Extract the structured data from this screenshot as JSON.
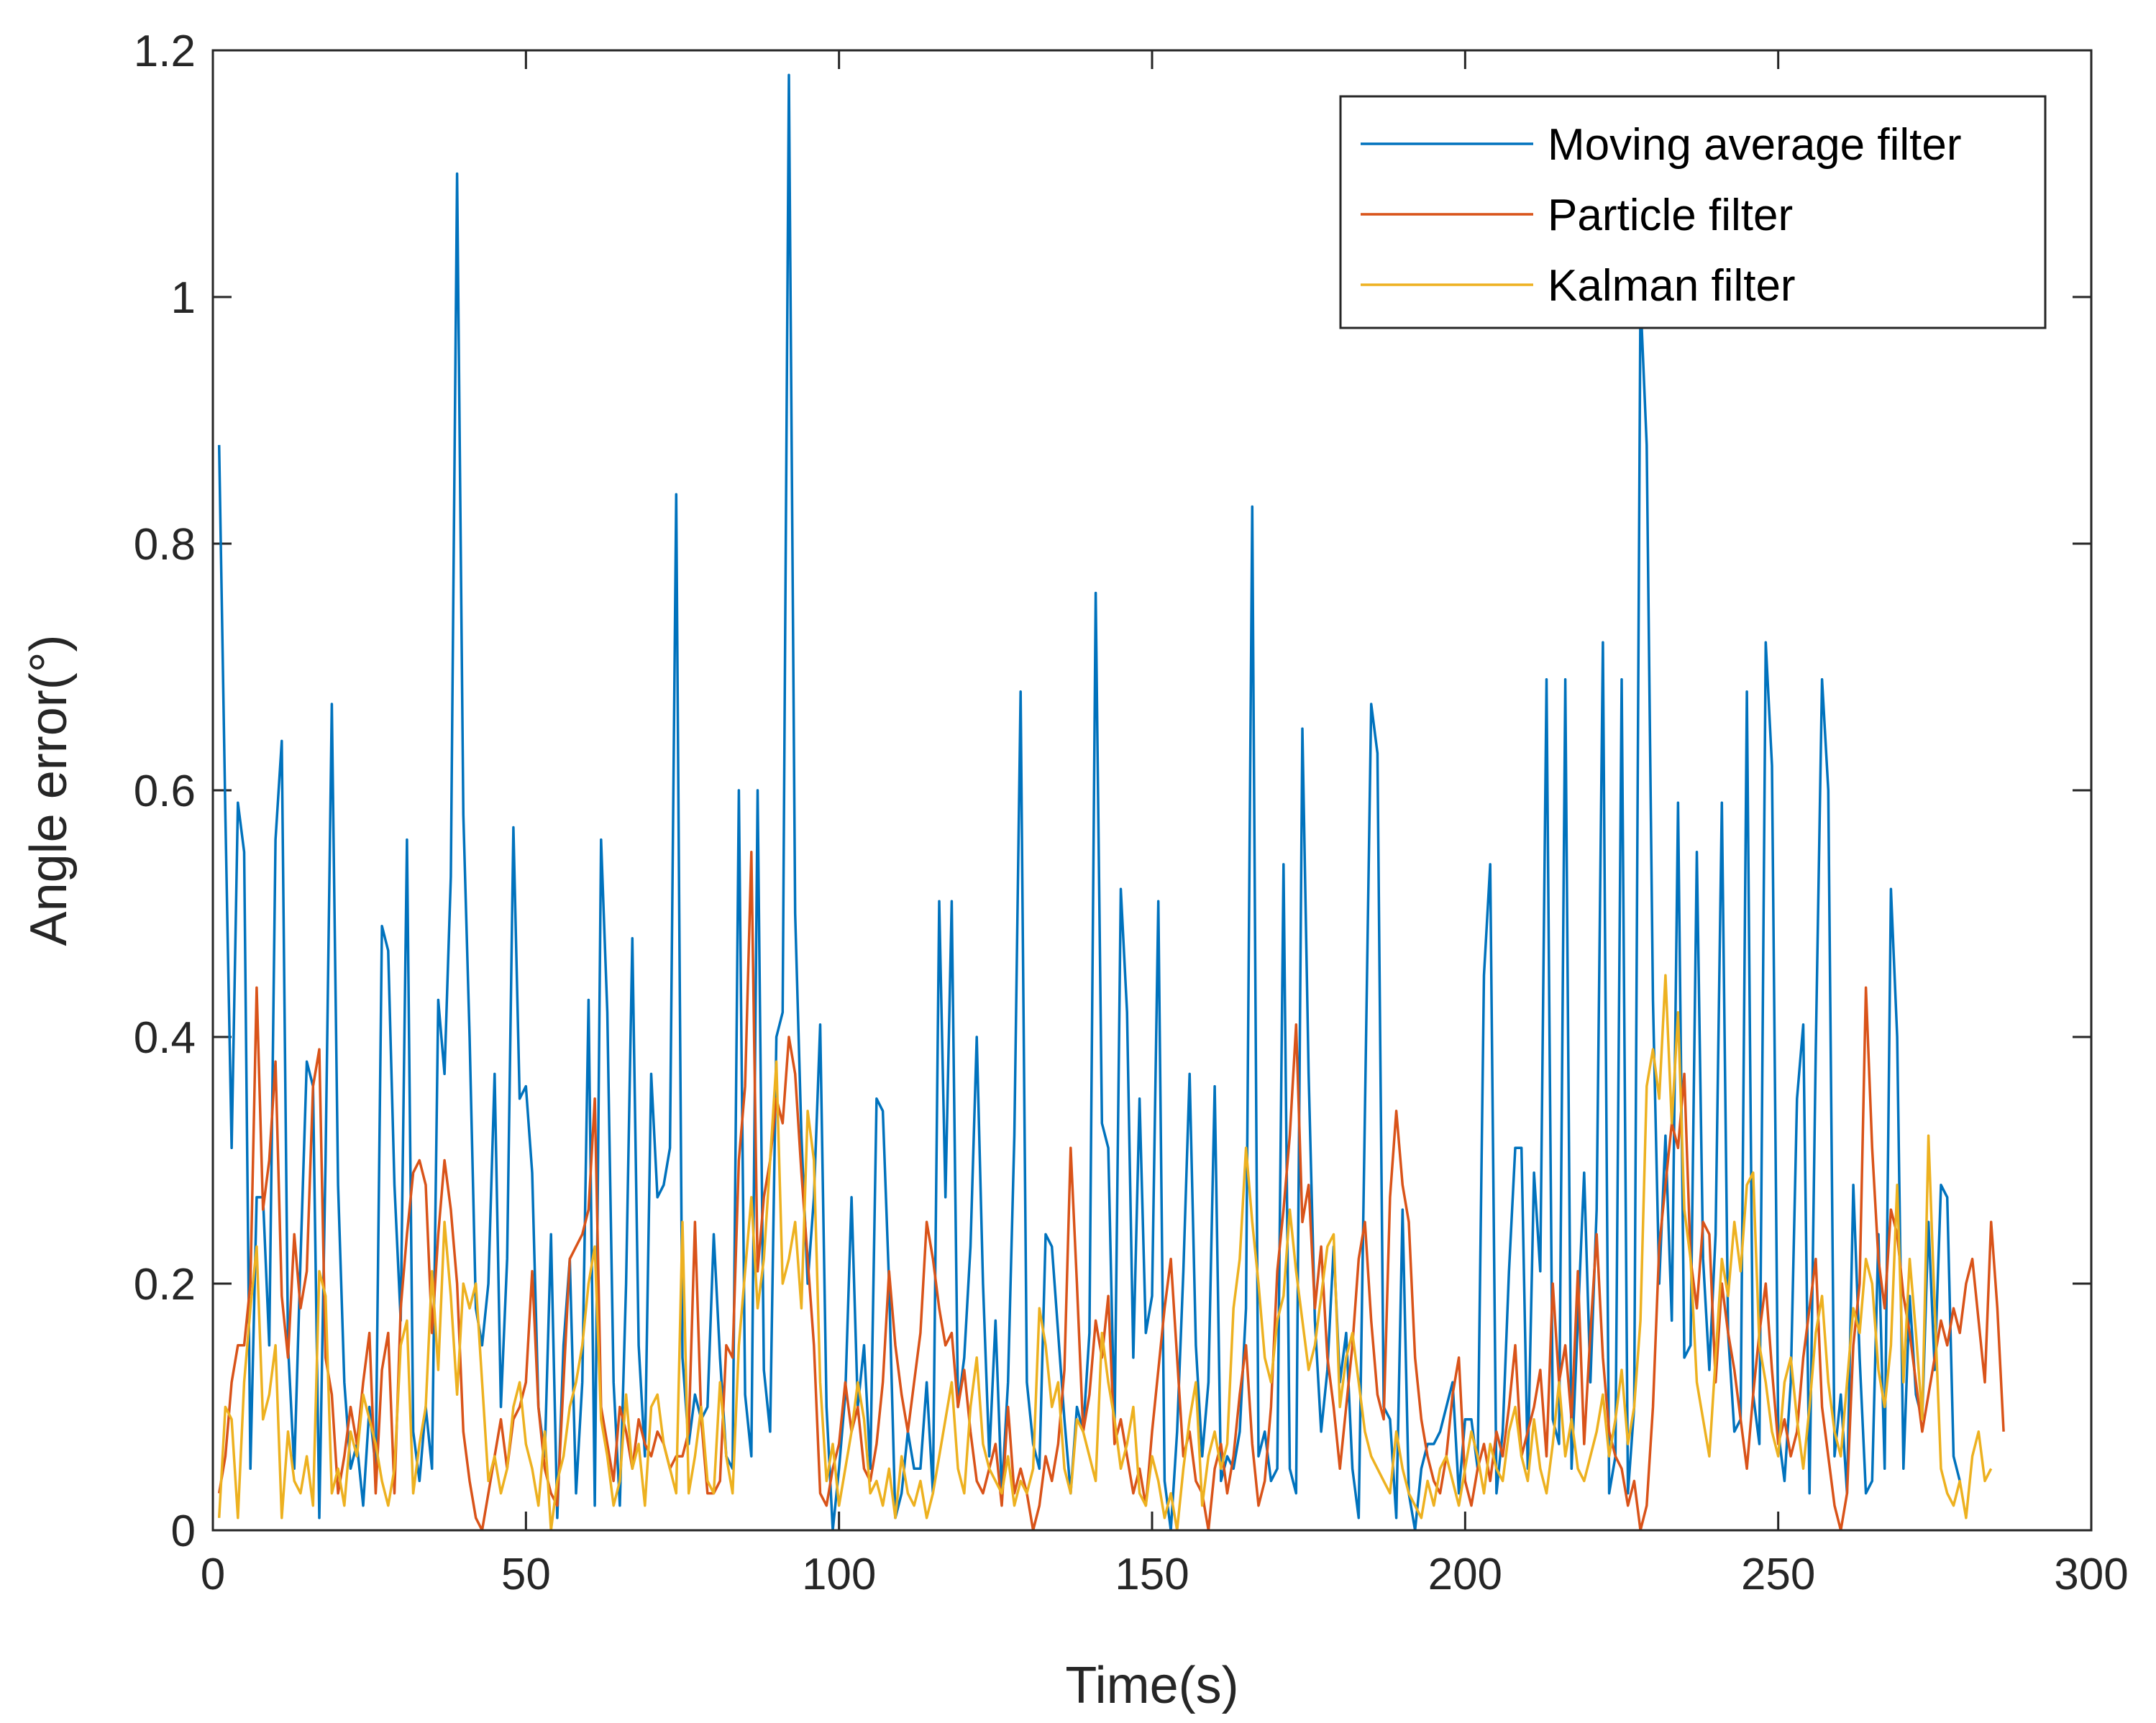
{
  "chart_data": {
    "type": "line",
    "title": "",
    "xlabel": "Time(s)",
    "ylabel": "Angle error(°)",
    "xlim": [
      0,
      300
    ],
    "ylim": [
      0,
      1.2
    ],
    "xticks": [
      0,
      50,
      100,
      150,
      200,
      250,
      300
    ],
    "yticks": [
      0,
      0.2,
      0.4,
      0.6,
      0.8,
      1,
      1.2
    ],
    "xtick_labels": [
      "0",
      "50",
      "100",
      "150",
      "200",
      "250",
      "300"
    ],
    "ytick_labels": [
      "0",
      "0.2",
      "0.4",
      "0.6",
      "0.8",
      "1",
      "1.2"
    ],
    "legend_position": "top-right",
    "x": {
      "start": 1,
      "end": 300,
      "step": 1
    },
    "series": [
      {
        "name": "Moving average filter",
        "color": "#0072BD",
        "values": [
          0.88,
          0.58,
          0.31,
          0.59,
          0.55,
          0.05,
          0.27,
          0.27,
          0.15,
          0.56,
          0.64,
          0.15,
          0.05,
          0.22,
          0.38,
          0.36,
          0.01,
          0.3,
          0.67,
          0.28,
          0.12,
          0.05,
          0.07,
          0.02,
          0.1,
          0.05,
          0.49,
          0.47,
          0.28,
          0.17,
          0.56,
          0.08,
          0.04,
          0.1,
          0.05,
          0.43,
          0.37,
          0.53,
          1.1,
          0.58,
          0.4,
          0.18,
          0.15,
          0.2,
          0.37,
          0.1,
          0.22,
          0.57,
          0.35,
          0.36,
          0.29,
          0.1,
          0.06,
          0.24,
          0.01,
          0.15,
          0.22,
          0.03,
          0.12,
          0.43,
          0.02,
          0.56,
          0.42,
          0.12,
          0.02,
          0.2,
          0.48,
          0.15,
          0.06,
          0.37,
          0.27,
          0.28,
          0.31,
          0.84,
          0.14,
          0.07,
          0.11,
          0.09,
          0.1,
          0.24,
          0.14,
          0.06,
          0.05,
          0.6,
          0.11,
          0.06,
          0.6,
          0.13,
          0.08,
          0.4,
          0.42,
          1.18,
          0.5,
          0.32,
          0.2,
          0.27,
          0.41,
          0.1,
          0.0,
          0.05,
          0.11,
          0.27,
          0.1,
          0.15,
          0.05,
          0.35,
          0.34,
          0.2,
          0.01,
          0.03,
          0.08,
          0.05,
          0.05,
          0.12,
          0.03,
          0.51,
          0.27,
          0.51,
          0.1,
          0.14,
          0.23,
          0.4,
          0.2,
          0.06,
          0.17,
          0.03,
          0.12,
          0.32,
          0.68,
          0.12,
          0.07,
          0.05,
          0.24,
          0.23,
          0.16,
          0.09,
          0.03,
          0.1,
          0.08,
          0.16,
          0.76,
          0.33,
          0.31,
          0.08,
          0.52,
          0.42,
          0.14,
          0.35,
          0.16,
          0.19,
          0.51,
          0.04,
          0.0,
          0.08,
          0.21,
          0.37,
          0.15,
          0.06,
          0.12,
          0.36,
          0.04,
          0.06,
          0.05,
          0.08,
          0.18,
          0.83,
          0.06,
          0.08,
          0.04,
          0.05,
          0.54,
          0.05,
          0.03,
          0.65,
          0.37,
          0.17,
          0.08,
          0.13,
          0.23,
          0.12,
          0.16,
          0.05,
          0.01,
          0.34,
          0.67,
          0.63,
          0.1,
          0.09,
          0.01,
          0.26,
          0.03,
          0.0,
          0.05,
          0.07,
          0.07,
          0.08,
          0.1,
          0.12,
          0.03,
          0.09,
          0.09,
          0.05,
          0.45,
          0.54,
          0.03,
          0.08,
          0.21,
          0.31,
          0.31,
          0.05,
          0.29,
          0.21,
          0.69,
          0.09,
          0.07,
          0.69,
          0.05,
          0.17,
          0.29,
          0.12,
          0.26,
          0.72,
          0.03,
          0.06,
          0.69,
          0.03,
          0.1,
          1.0,
          0.88,
          0.43,
          0.2,
          0.32,
          0.17,
          0.59,
          0.14,
          0.15,
          0.55,
          0.22,
          0.13,
          0.24,
          0.59,
          0.16,
          0.08,
          0.09,
          0.68,
          0.11,
          0.07,
          0.72,
          0.62,
          0.08,
          0.04,
          0.12,
          0.35,
          0.41,
          0.03,
          0.39,
          0.69,
          0.6,
          0.06,
          0.11,
          0.03,
          0.28,
          0.14,
          0.03,
          0.04,
          0.24,
          0.05,
          0.52,
          0.4,
          0.05,
          0.19,
          0.11,
          0.09,
          0.25,
          0.13,
          0.28,
          0.27,
          0.06,
          0.04
        ]
      },
      {
        "name": "Particle filter",
        "color": "#D95319",
        "values": [
          0.03,
          0.06,
          0.12,
          0.15,
          0.15,
          0.2,
          0.44,
          0.26,
          0.3,
          0.38,
          0.19,
          0.14,
          0.24,
          0.18,
          0.21,
          0.36,
          0.39,
          0.14,
          0.11,
          0.03,
          0.06,
          0.1,
          0.07,
          0.12,
          0.16,
          0.03,
          0.13,
          0.16,
          0.03,
          0.18,
          0.24,
          0.29,
          0.3,
          0.28,
          0.16,
          0.24,
          0.3,
          0.26,
          0.2,
          0.08,
          0.04,
          0.01,
          0.0,
          0.03,
          0.06,
          0.09,
          0.05,
          0.09,
          0.1,
          0.12,
          0.21,
          0.1,
          0.05,
          0.03,
          0.02,
          0.12,
          0.22,
          0.23,
          0.24,
          0.26,
          0.35,
          0.1,
          0.07,
          0.04,
          0.1,
          0.08,
          0.05,
          0.09,
          0.07,
          0.06,
          0.08,
          0.07,
          0.05,
          0.06,
          0.06,
          0.08,
          0.25,
          0.09,
          0.03,
          0.03,
          0.04,
          0.15,
          0.14,
          0.3,
          0.36,
          0.55,
          0.21,
          0.27,
          0.3,
          0.35,
          0.33,
          0.4,
          0.37,
          0.29,
          0.22,
          0.15,
          0.03,
          0.02,
          0.05,
          0.07,
          0.12,
          0.08,
          0.1,
          0.05,
          0.04,
          0.07,
          0.12,
          0.21,
          0.15,
          0.11,
          0.08,
          0.12,
          0.16,
          0.25,
          0.22,
          0.18,
          0.15,
          0.16,
          0.1,
          0.13,
          0.08,
          0.04,
          0.03,
          0.05,
          0.07,
          0.02,
          0.1,
          0.03,
          0.05,
          0.03,
          0.0,
          0.02,
          0.06,
          0.04,
          0.07,
          0.13,
          0.31,
          0.2,
          0.08,
          0.11,
          0.17,
          0.14,
          0.19,
          0.07,
          0.09,
          0.06,
          0.03,
          0.05,
          0.02,
          0.08,
          0.13,
          0.18,
          0.22,
          0.14,
          0.06,
          0.08,
          0.04,
          0.03,
          0.0,
          0.05,
          0.07,
          0.03,
          0.06,
          0.11,
          0.15,
          0.07,
          0.02,
          0.04,
          0.1,
          0.21,
          0.26,
          0.32,
          0.41,
          0.25,
          0.28,
          0.18,
          0.23,
          0.14,
          0.1,
          0.05,
          0.1,
          0.15,
          0.22,
          0.25,
          0.17,
          0.11,
          0.09,
          0.27,
          0.34,
          0.28,
          0.25,
          0.14,
          0.09,
          0.06,
          0.04,
          0.03,
          0.06,
          0.11,
          0.14,
          0.04,
          0.02,
          0.05,
          0.07,
          0.04,
          0.08,
          0.06,
          0.1,
          0.15,
          0.06,
          0.08,
          0.1,
          0.13,
          0.06,
          0.2,
          0.12,
          0.15,
          0.09,
          0.21,
          0.07,
          0.16,
          0.24,
          0.14,
          0.08,
          0.06,
          0.05,
          0.02,
          0.04,
          0.0,
          0.02,
          0.1,
          0.23,
          0.28,
          0.33,
          0.31,
          0.37,
          0.22,
          0.18,
          0.25,
          0.24,
          0.12,
          0.2,
          0.16,
          0.13,
          0.09,
          0.05,
          0.11,
          0.16,
          0.2,
          0.13,
          0.07,
          0.09,
          0.06,
          0.08,
          0.14,
          0.18,
          0.22,
          0.1,
          0.06,
          0.02,
          0.0,
          0.03,
          0.15,
          0.2,
          0.44,
          0.31,
          0.22,
          0.18,
          0.26,
          0.24,
          0.19,
          0.16,
          0.12,
          0.08,
          0.11,
          0.14,
          0.17,
          0.15,
          0.18,
          0.16,
          0.2,
          0.22,
          0.17,
          0.12,
          0.25,
          0.18,
          0.08
        ]
      },
      {
        "name": "Kalman filter",
        "color": "#EDB120",
        "values": [
          0.01,
          0.1,
          0.09,
          0.01,
          0.12,
          0.18,
          0.23,
          0.09,
          0.11,
          0.15,
          0.01,
          0.08,
          0.04,
          0.03,
          0.06,
          0.02,
          0.21,
          0.19,
          0.03,
          0.05,
          0.02,
          0.08,
          0.06,
          0.11,
          0.09,
          0.07,
          0.04,
          0.02,
          0.05,
          0.15,
          0.17,
          0.03,
          0.07,
          0.1,
          0.21,
          0.13,
          0.25,
          0.19,
          0.11,
          0.2,
          0.18,
          0.2,
          0.12,
          0.04,
          0.06,
          0.03,
          0.05,
          0.1,
          0.12,
          0.07,
          0.05,
          0.02,
          0.08,
          0.0,
          0.04,
          0.06,
          0.1,
          0.12,
          0.15,
          0.2,
          0.23,
          0.09,
          0.06,
          0.02,
          0.04,
          0.11,
          0.05,
          0.07,
          0.02,
          0.1,
          0.11,
          0.07,
          0.05,
          0.03,
          0.25,
          0.03,
          0.06,
          0.1,
          0.04,
          0.03,
          0.12,
          0.06,
          0.03,
          0.15,
          0.21,
          0.27,
          0.18,
          0.22,
          0.3,
          0.38,
          0.2,
          0.22,
          0.25,
          0.18,
          0.34,
          0.3,
          0.12,
          0.04,
          0.07,
          0.02,
          0.05,
          0.08,
          0.12,
          0.09,
          0.03,
          0.04,
          0.02,
          0.05,
          0.01,
          0.06,
          0.03,
          0.02,
          0.04,
          0.01,
          0.03,
          0.06,
          0.09,
          0.12,
          0.05,
          0.03,
          0.1,
          0.14,
          0.07,
          0.05,
          0.04,
          0.03,
          0.06,
          0.02,
          0.04,
          0.03,
          0.05,
          0.18,
          0.15,
          0.1,
          0.12,
          0.05,
          0.03,
          0.09,
          0.08,
          0.06,
          0.04,
          0.16,
          0.12,
          0.09,
          0.05,
          0.07,
          0.1,
          0.03,
          0.02,
          0.06,
          0.04,
          0.01,
          0.03,
          0.0,
          0.05,
          0.09,
          0.12,
          0.02,
          0.06,
          0.08,
          0.05,
          0.07,
          0.18,
          0.22,
          0.31,
          0.25,
          0.2,
          0.14,
          0.12,
          0.17,
          0.19,
          0.26,
          0.21,
          0.17,
          0.13,
          0.15,
          0.19,
          0.23,
          0.24,
          0.1,
          0.14,
          0.16,
          0.12,
          0.08,
          0.06,
          0.05,
          0.04,
          0.03,
          0.08,
          0.05,
          0.03,
          0.02,
          0.01,
          0.04,
          0.02,
          0.05,
          0.06,
          0.04,
          0.02,
          0.05,
          0.08,
          0.06,
          0.03,
          0.07,
          0.05,
          0.04,
          0.08,
          0.1,
          0.06,
          0.04,
          0.09,
          0.05,
          0.03,
          0.07,
          0.12,
          0.06,
          0.09,
          0.05,
          0.04,
          0.06,
          0.08,
          0.11,
          0.06,
          0.09,
          0.13,
          0.07,
          0.1,
          0.17,
          0.36,
          0.39,
          0.35,
          0.45,
          0.33,
          0.42,
          0.26,
          0.22,
          0.12,
          0.09,
          0.06,
          0.14,
          0.22,
          0.19,
          0.25,
          0.21,
          0.28,
          0.29,
          0.15,
          0.12,
          0.08,
          0.06,
          0.12,
          0.14,
          0.09,
          0.05,
          0.1,
          0.16,
          0.19,
          0.12,
          0.08,
          0.06,
          0.12,
          0.18,
          0.16,
          0.22,
          0.2,
          0.13,
          0.1,
          0.15,
          0.28,
          0.12,
          0.22,
          0.16,
          0.09,
          0.32,
          0.18,
          0.05,
          0.03,
          0.02,
          0.04,
          0.01,
          0.06,
          0.08,
          0.04,
          0.05
        ]
      }
    ]
  }
}
